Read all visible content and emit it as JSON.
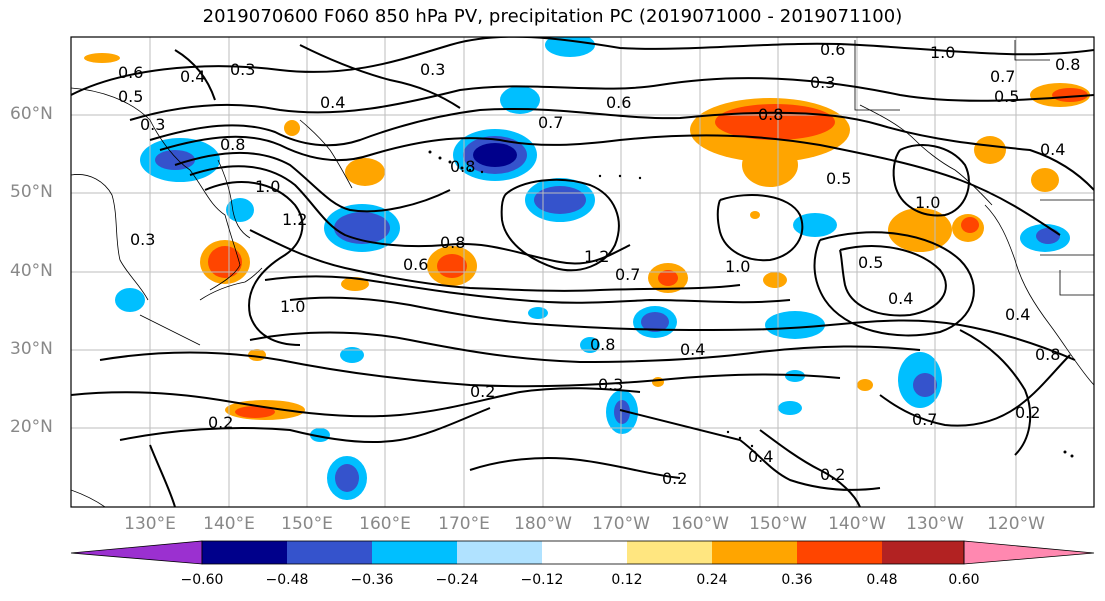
{
  "title": "2019070600 F060 850 hPa PV, precipitation PC (2019071000 - 2019071100)",
  "lat_labels": [
    "60°N",
    "50°N",
    "40°N",
    "30°N",
    "20°N"
  ],
  "lon_labels": [
    "130°E",
    "140°E",
    "150°E",
    "160°E",
    "170°E",
    "180°W",
    "170°W",
    "160°W",
    "150°W",
    "140°W",
    "130°W",
    "120°W"
  ],
  "contour_labels": [
    "0.6",
    "0.5",
    "0.4",
    "0.3",
    "0.3",
    "0.6",
    "1.0",
    "0.7",
    "0.8",
    "0.3",
    "0.5",
    "0.6",
    "0.4",
    "0.3",
    "0.8",
    "0.7",
    "0.8",
    "1.0",
    "1.2",
    "0.3",
    "0.8",
    "1.2",
    "0.5",
    "1.0",
    "0.6",
    "0.8",
    "1.0",
    "0.4",
    "0.5",
    "1.0",
    "0.4",
    "0.7",
    "0.8",
    "0.4",
    "0.3",
    "0.2",
    "0.2",
    "0.2",
    "0.4",
    "0.2",
    "0.7",
    "0.2",
    "0.8",
    "0.4"
  ],
  "colorbar": {
    "ticks": [
      "−0.60",
      "−0.48",
      "−0.36",
      "−0.24",
      "−0.12",
      "0.12",
      "0.24",
      "0.36",
      "0.48",
      "0.60"
    ],
    "colors": [
      "#9b30d0",
      "#00008b",
      "#3553cc",
      "#00bfff",
      "#b0e2ff",
      "#ffffff",
      "#ffe680",
      "#ffa500",
      "#ff4500",
      "#b22222",
      "#ff88b0"
    ]
  },
  "colors": {
    "neg_strong": "#1c1c9e",
    "neg_mid": "#3553cc",
    "neg_light": "#00bfff",
    "neg_faint": "#b0e2ff",
    "pos_faint": "#ffe680",
    "pos_mid": "#ffa500",
    "pos_strong": "#ff4500"
  }
}
